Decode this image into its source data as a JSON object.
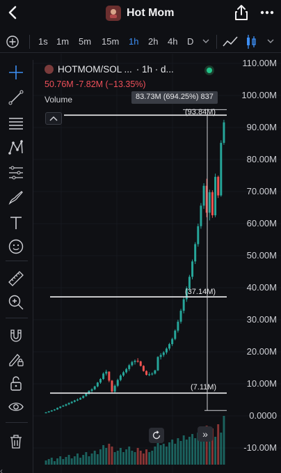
{
  "header": {
    "title": "Hot Mom"
  },
  "toolbar": {
    "intervals": [
      "1s",
      "1m",
      "5m",
      "15m",
      "1h",
      "2h",
      "4h",
      "D"
    ],
    "active_interval": "1h"
  },
  "legend": {
    "symbol": "HOTMOM/SOL ...",
    "interval": "· 1h · d...",
    "ohlc": "50.76M  -7.82M (−13.35%)",
    "volume_label": "Volume"
  },
  "measure": {
    "tooltip": "83.73M (694.25%) 837",
    "top_label": "(93.84M)",
    "mid_label": "(37.14M)",
    "bottom_label": "(7.11M)"
  },
  "y_axis": {
    "labels": [
      "110.00M",
      "100.00M",
      "90.00M",
      "80.00M",
      "70.00M",
      "60.00M",
      "50.00M",
      "40.00M",
      "30.00M",
      "20.00M",
      "10.00M",
      "0.0000",
      "-10.00M"
    ]
  },
  "colors": {
    "up": "#26a69a",
    "down": "#ef5350",
    "accent": "#3d8ff5",
    "background": "#0f1014"
  },
  "icons": [
    "back-arrow-icon",
    "share-icon",
    "more-dots-icon",
    "plus-circle-icon",
    "crosshair-icon",
    "trend-line-icon",
    "horizontal-lines-icon",
    "pattern-icon",
    "fib-icon",
    "brush-icon",
    "text-icon",
    "emoji-icon",
    "ruler-icon",
    "zoom-in-icon",
    "magnet-icon",
    "lock-pencil-icon",
    "lock-icon",
    "eye-icon",
    "trash-icon",
    "reset-icon",
    "scroll-forward-icon"
  ],
  "chart_data": {
    "type": "candlestick",
    "y_unit": "M",
    "ylim": [
      -15,
      115
    ],
    "note_price_levels": [
      93.84,
      37.14,
      7.11
    ],
    "candles": [
      [
        1.0,
        1.2,
        0.8,
        1.1
      ],
      [
        1.1,
        1.5,
        1.0,
        1.4
      ],
      [
        1.4,
        1.8,
        1.3,
        1.7
      ],
      [
        1.7,
        2.1,
        1.6,
        2.0
      ],
      [
        2.0,
        2.6,
        1.9,
        2.5
      ],
      [
        2.5,
        3.0,
        2.3,
        2.9
      ],
      [
        2.9,
        3.4,
        2.8,
        3.2
      ],
      [
        3.2,
        3.8,
        3.0,
        3.6
      ],
      [
        3.6,
        4.2,
        3.4,
        4.0
      ],
      [
        4.0,
        4.6,
        3.8,
        4.4
      ],
      [
        4.4,
        5.0,
        4.2,
        4.8
      ],
      [
        4.8,
        5.4,
        4.6,
        5.1
      ],
      [
        5.1,
        5.8,
        5.0,
        5.6
      ],
      [
        5.6,
        6.4,
        5.4,
        6.2
      ],
      [
        6.2,
        7.2,
        6.0,
        7.0
      ],
      [
        7.0,
        8.0,
        6.6,
        7.8
      ],
      [
        7.8,
        8.6,
        7.3,
        8.3
      ],
      [
        8.3,
        9.4,
        8.0,
        9.2
      ],
      [
        9.2,
        10.6,
        8.9,
        10.4
      ],
      [
        10.4,
        11.8,
        10.0,
        11.5
      ],
      [
        11.5,
        13.6,
        11.2,
        13.2
      ],
      [
        13.2,
        14.4,
        12.6,
        13.8
      ],
      [
        13.8,
        13.9,
        10.5,
        11.0
      ],
      [
        11.0,
        11.2,
        7.2,
        7.6
      ],
      [
        7.6,
        9.8,
        7.2,
        9.4
      ],
      [
        9.4,
        11.6,
        9.0,
        11.2
      ],
      [
        11.2,
        13.0,
        10.8,
        12.6
      ],
      [
        12.6,
        14.0,
        12.2,
        13.6
      ],
      [
        13.6,
        15.0,
        13.2,
        14.6
      ],
      [
        14.6,
        16.2,
        14.0,
        15.8
      ],
      [
        15.8,
        17.2,
        15.4,
        16.8
      ],
      [
        16.8,
        17.6,
        16.0,
        17.2
      ],
      [
        17.2,
        18.0,
        16.6,
        17.0
      ],
      [
        17.0,
        17.2,
        15.4,
        15.6
      ],
      [
        15.6,
        15.8,
        13.8,
        14.0
      ],
      [
        14.0,
        14.2,
        12.6,
        12.8
      ],
      [
        12.8,
        13.6,
        12.4,
        13.0
      ],
      [
        13.0,
        13.6,
        12.6,
        13.2
      ],
      [
        13.2,
        14.4,
        12.9,
        14.2
      ],
      [
        14.2,
        18.6,
        14.0,
        18.4
      ],
      [
        18.4,
        19.6,
        17.6,
        19.0
      ],
      [
        19.0,
        20.2,
        18.4,
        19.8
      ],
      [
        19.8,
        21.4,
        19.2,
        21.0
      ],
      [
        21.0,
        22.8,
        20.4,
        22.4
      ],
      [
        22.4,
        24.4,
        21.8,
        24.0
      ],
      [
        24.0,
        27.0,
        23.6,
        26.6
      ],
      [
        26.6,
        30.0,
        26.0,
        29.4
      ],
      [
        29.4,
        33.4,
        28.8,
        32.8
      ],
      [
        32.8,
        37.0,
        32.0,
        36.4
      ],
      [
        36.4,
        40.4,
        35.6,
        39.8
      ],
      [
        39.8,
        44.0,
        39.0,
        43.4
      ],
      [
        43.4,
        48.8,
        42.6,
        48.2
      ],
      [
        48.2,
        54.2,
        47.4,
        53.6
      ],
      [
        53.6,
        60.0,
        52.8,
        59.2
      ],
      [
        59.2,
        66.4,
        58.4,
        65.6
      ],
      [
        65.6,
        72.6,
        64.6,
        71.8
      ],
      [
        71.8,
        74.0,
        62.0,
        63.4
      ],
      [
        63.4,
        70.6,
        61.0,
        69.8
      ],
      [
        69.8,
        70.4,
        61.8,
        62.6
      ],
      [
        62.6,
        75.6,
        62.0,
        74.6
      ],
      [
        74.6,
        75.0,
        68.0,
        68.8
      ],
      [
        68.8,
        86.0,
        68.4,
        85.2
      ],
      [
        85.2,
        92.4,
        84.6,
        91.6
      ]
    ],
    "volume_scale_max": 100,
    "volumes": [
      6,
      8,
      10,
      5,
      9,
      12,
      8,
      11,
      14,
      9,
      12,
      16,
      10,
      14,
      18,
      12,
      16,
      20,
      15,
      22,
      28,
      24,
      30,
      26,
      18,
      20,
      24,
      18,
      22,
      26,
      20,
      18,
      24,
      20,
      16,
      22,
      18,
      20,
      26,
      34,
      28,
      30,
      26,
      32,
      36,
      30,
      38,
      34,
      42,
      36,
      40,
      44,
      38,
      46,
      50,
      44,
      56,
      48,
      52,
      40,
      58,
      46,
      70
    ]
  }
}
